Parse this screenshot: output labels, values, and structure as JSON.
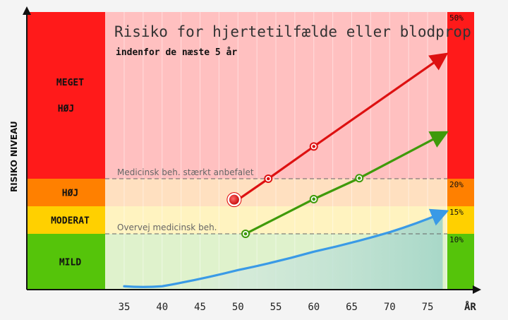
{
  "chart_data": {
    "type": "line",
    "title": "Risiko for hjertetilfælde eller blodprop",
    "subtitle": "indenfor de næste 5 år",
    "ylabel": "RISIKO NIVEAU",
    "xlabel": "ÅR",
    "x_ticks": [
      35,
      40,
      45,
      50,
      55,
      60,
      65,
      70,
      75
    ],
    "xlim": [
      30,
      78
    ],
    "ylim": [
      0,
      50
    ],
    "risk_levels": [
      {
        "key": "mild",
        "label": "MILD",
        "from": 0,
        "to": 10,
        "side_color": "#55c40a",
        "fill_color": "#dff2cc"
      },
      {
        "key": "moderat",
        "label": "MODERAT",
        "from": 10,
        "to": 15,
        "side_color": "#ffd000",
        "fill_color": "#fff3c0"
      },
      {
        "key": "hoj",
        "label": "HØJ",
        "from": 15,
        "to": 20,
        "side_color": "#ff8000",
        "fill_color": "#ffe0c0"
      },
      {
        "key": "meget-hoj",
        "label_lines": [
          "MEGET",
          "HØJ"
        ],
        "from": 20,
        "to": 50,
        "side_color": "#ff1a1a",
        "fill_color": "#ffc0c0"
      }
    ],
    "percent_labels": [
      {
        "label": "10%",
        "value": 10
      },
      {
        "label": "15%",
        "value": 15
      },
      {
        "label": "20%",
        "value": 20
      },
      {
        "label": "50%",
        "value": 50
      }
    ],
    "thresholds": [
      {
        "label": "Medicinsk beh. stærkt anbefalet",
        "value": 20
      },
      {
        "label": "Overvej medicinsk beh.",
        "value": 10
      }
    ],
    "series": [
      {
        "key": "red",
        "color": "#dd1111",
        "points": [
          [
            50,
            16.2
          ],
          [
            54,
            20
          ],
          [
            60,
            25.8
          ],
          [
            77,
            42
          ]
        ],
        "marker_points": [
          [
            54,
            20
          ],
          [
            60,
            25.8
          ]
        ],
        "highlight_point": [
          49.5,
          16.2
        ]
      },
      {
        "key": "green",
        "color": "#3f9a0a",
        "points": [
          [
            51,
            10
          ],
          [
            60,
            16.3
          ],
          [
            66,
            20.1
          ],
          [
            77,
            28
          ]
        ],
        "marker_points": [
          [
            51,
            10
          ],
          [
            60,
            16.3
          ],
          [
            66,
            20.1
          ]
        ]
      },
      {
        "key": "blue",
        "color": "#3a9ae6",
        "points": [
          [
            35,
            0.6
          ],
          [
            40,
            0.6
          ],
          [
            50,
            3.5
          ],
          [
            60,
            6.8
          ],
          [
            70,
            10.3
          ],
          [
            77,
            13.8
          ]
        ],
        "marker_points": []
      }
    ]
  }
}
